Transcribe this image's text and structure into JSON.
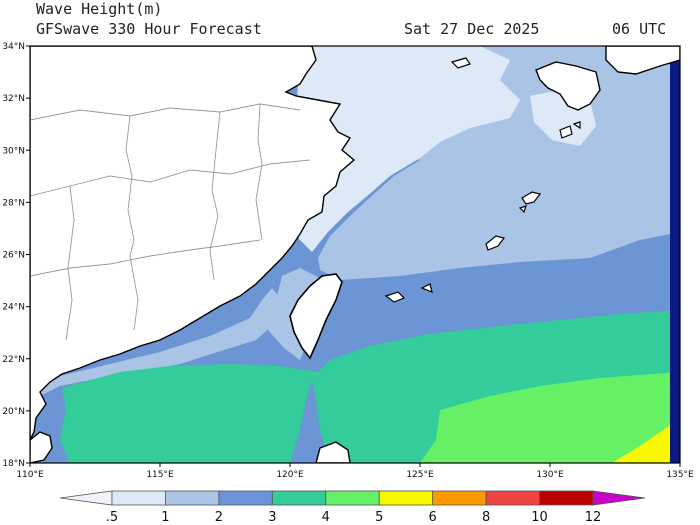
{
  "header": {
    "title": "Wave Height(m)",
    "model": "GFSwave 330 Hour Forecast",
    "date": "Sat 27 Dec 2025",
    "time": "06 UTC"
  },
  "map": {
    "lon_range": [
      110,
      135
    ],
    "lat_range": [
      18,
      34
    ],
    "x_ticks": [
      {
        "value": 110,
        "label": "110°E"
      },
      {
        "value": 115,
        "label": "115°E"
      },
      {
        "value": 120,
        "label": "120°E"
      },
      {
        "value": 125,
        "label": "125°E"
      },
      {
        "value": 130,
        "label": "130°E"
      },
      {
        "value": 135,
        "label": "135°E"
      }
    ],
    "y_ticks": [
      {
        "value": 34,
        "label": "34°N"
      },
      {
        "value": 32,
        "label": "32°N"
      },
      {
        "value": 30,
        "label": "30°N"
      },
      {
        "value": 28,
        "label": "28°N"
      },
      {
        "value": 26,
        "label": "26°N"
      },
      {
        "value": 24,
        "label": "24°N"
      },
      {
        "value": 22,
        "label": "22°N"
      },
      {
        "value": 20,
        "label": "20°N"
      },
      {
        "value": 18,
        "label": "18°N"
      }
    ]
  },
  "colorbar": {
    "levels": [
      ".5",
      "1",
      "2",
      "3",
      "4",
      "5",
      "6",
      "8",
      "10",
      "12"
    ],
    "colors": [
      "#f2f2fa",
      "#dde9f7",
      "#aac4e6",
      "#6b95d4",
      "#34cc9a",
      "#66f066",
      "#f8f800",
      "#ff9900",
      "#ee4444",
      "#bb0000",
      "#cc00cc"
    ]
  }
}
